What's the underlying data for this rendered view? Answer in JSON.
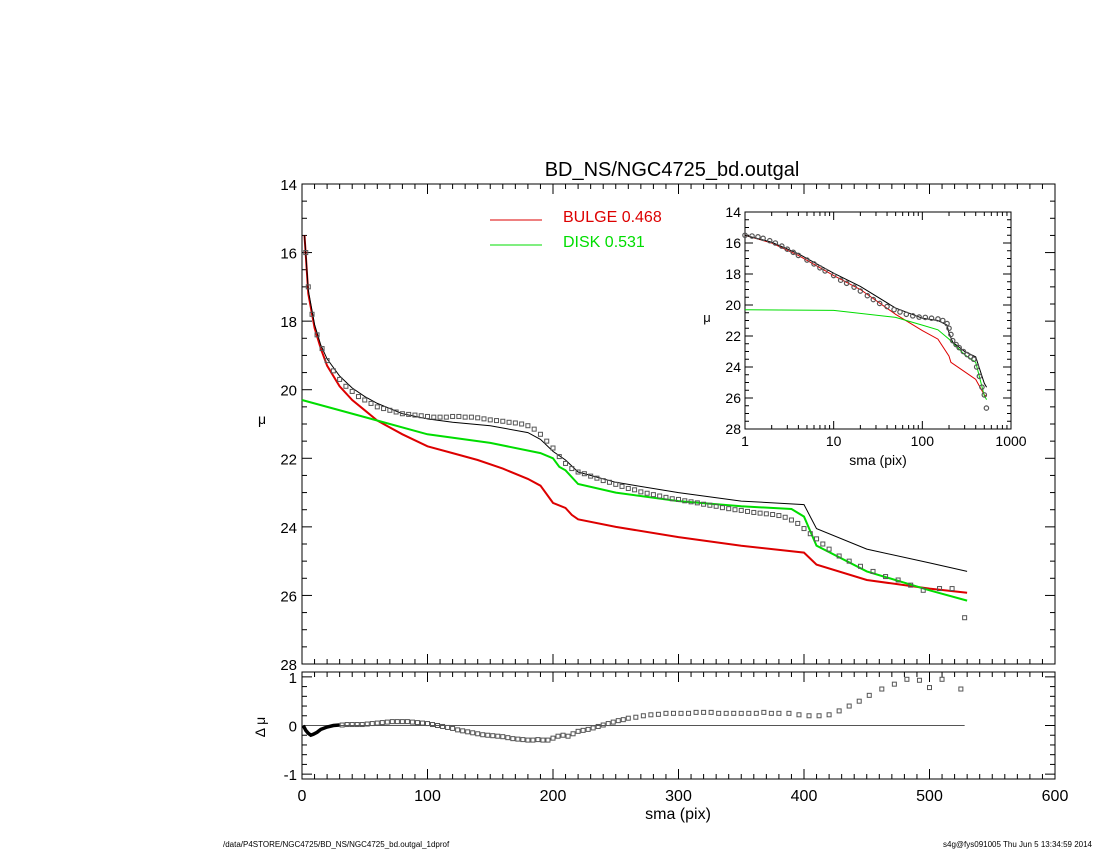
{
  "title": "BD_NS/NGC4725_bd.outgal",
  "footer": {
    "left": "/data/P4STORE/NGC4725/BD_NS/NGC4725_bd.outgal_1dprof",
    "right": "s4g@fys091005  Thu Jun  5 13:34:59 2014"
  },
  "legend": {
    "bulge_label": "BULGE  0.468",
    "disk_label": "DISK  0.531"
  },
  "colors": {
    "bulge": "#dd0000",
    "disk": "#00dd00",
    "total": "#000000",
    "data": "#555555"
  },
  "chart_data": [
    {
      "id": "main",
      "type": "line",
      "xlabel": "",
      "ylabel": "μ",
      "xlim": [
        0,
        600
      ],
      "ylim": [
        28,
        14
      ],
      "y_inverted": true,
      "y_ticks": [
        14,
        16,
        18,
        20,
        22,
        24,
        26,
        28
      ],
      "y_tick_labels": [
        "14",
        "16",
        "18",
        "20",
        "22",
        "24",
        "26",
        "28"
      ],
      "legend_position": "top-center",
      "series": [
        {
          "name": "BULGE  0.468",
          "color_key": "bulge",
          "x": [
            2,
            5,
            10,
            15,
            20,
            30,
            40,
            50,
            60,
            80,
            100,
            120,
            140,
            160,
            180,
            190,
            200,
            210,
            215,
            220,
            250,
            300,
            350,
            400,
            410,
            450,
            500,
            530
          ],
          "y": [
            15.5,
            17.2,
            18.2,
            18.8,
            19.3,
            19.9,
            20.3,
            20.6,
            20.9,
            21.3,
            21.65,
            21.85,
            22.05,
            22.3,
            22.6,
            22.8,
            23.3,
            23.45,
            23.65,
            23.78,
            24.0,
            24.3,
            24.55,
            24.75,
            25.1,
            25.55,
            25.8,
            25.92
          ]
        },
        {
          "name": "DISK  0.531",
          "color_key": "disk",
          "x": [
            0,
            50,
            100,
            150,
            190,
            200,
            205,
            210,
            220,
            250,
            300,
            350,
            390,
            400,
            410,
            450,
            500,
            530
          ],
          "y": [
            20.3,
            20.8,
            21.3,
            21.55,
            21.85,
            22.0,
            22.25,
            22.35,
            22.75,
            23.0,
            23.25,
            23.4,
            23.48,
            23.7,
            24.55,
            25.3,
            25.85,
            26.15
          ]
        },
        {
          "color_key": "total",
          "x": [
            2,
            5,
            10,
            15,
            20,
            30,
            40,
            50,
            60,
            80,
            100,
            120,
            150,
            180,
            190,
            200,
            210,
            220,
            250,
            300,
            350,
            400,
            410,
            450,
            500,
            530
          ],
          "y": [
            15.5,
            17.1,
            18.1,
            18.7,
            19.1,
            19.6,
            19.95,
            20.2,
            20.4,
            20.7,
            20.85,
            20.95,
            21.05,
            21.25,
            21.45,
            21.8,
            22.05,
            22.4,
            22.7,
            23.0,
            23.25,
            23.35,
            24.05,
            24.65,
            25.05,
            25.3
          ]
        }
      ],
      "data_points": {
        "x": [
          3,
          5,
          8,
          12,
          16,
          20,
          25,
          30,
          35,
          40,
          45,
          50,
          55,
          60,
          65,
          70,
          75,
          80,
          85,
          90,
          95,
          100,
          105,
          110,
          115,
          120,
          125,
          130,
          135,
          140,
          145,
          150,
          155,
          160,
          165,
          170,
          175,
          180,
          185,
          190,
          195,
          200,
          205,
          210,
          215,
          220,
          225,
          230,
          235,
          240,
          245,
          250,
          255,
          260,
          265,
          270,
          275,
          280,
          285,
          290,
          295,
          300,
          305,
          310,
          315,
          320,
          325,
          330,
          335,
          340,
          345,
          350,
          355,
          360,
          365,
          370,
          375,
          380,
          385,
          390,
          395,
          400,
          405,
          410,
          415,
          420,
          428,
          436,
          445,
          455,
          465,
          475,
          485,
          495,
          508,
          518,
          528
        ],
        "y": [
          16.0,
          17.0,
          17.8,
          18.4,
          18.8,
          19.15,
          19.45,
          19.7,
          19.9,
          20.05,
          20.2,
          20.3,
          20.4,
          20.5,
          20.55,
          20.6,
          20.65,
          20.7,
          20.72,
          20.74,
          20.76,
          20.78,
          20.8,
          20.8,
          20.8,
          20.78,
          20.78,
          20.8,
          20.8,
          20.82,
          20.85,
          20.88,
          20.9,
          20.92,
          20.95,
          20.97,
          21.0,
          21.05,
          21.15,
          21.3,
          21.5,
          21.7,
          21.95,
          22.15,
          22.3,
          22.4,
          22.45,
          22.52,
          22.58,
          22.65,
          22.7,
          22.76,
          22.82,
          22.88,
          22.92,
          22.98,
          23.02,
          23.06,
          23.1,
          23.14,
          23.18,
          23.2,
          23.24,
          23.27,
          23.3,
          23.34,
          23.37,
          23.4,
          23.44,
          23.47,
          23.5,
          23.52,
          23.55,
          23.58,
          23.6,
          23.62,
          23.64,
          23.67,
          23.72,
          23.8,
          23.9,
          24.05,
          24.2,
          24.35,
          24.5,
          24.65,
          24.85,
          25.0,
          25.15,
          25.3,
          25.45,
          25.55,
          25.7,
          25.85,
          25.8,
          25.8,
          26.65
        ]
      }
    },
    {
      "id": "residual",
      "type": "scatter",
      "xlabel": "sma (pix)",
      "ylabel": "Δ μ",
      "xlim": [
        0,
        600
      ],
      "ylim": [
        -1.1,
        1.1
      ],
      "x_ticks": [
        0,
        100,
        200,
        300,
        400,
        500,
        600
      ],
      "x_tick_labels": [
        "0",
        "100",
        "200",
        "300",
        "400",
        "500",
        "600"
      ],
      "y_ticks": [
        -1,
        0,
        1
      ],
      "y_tick_labels": [
        "-1",
        "0",
        "1"
      ],
      "zero_line_xlim": [
        0,
        528
      ],
      "line": {
        "x": [
          1,
          3,
          5,
          7,
          9,
          12,
          15,
          20,
          25,
          30
        ],
        "y": [
          0.0,
          -0.1,
          -0.16,
          -0.2,
          -0.18,
          -0.14,
          -0.08,
          -0.03,
          0.0,
          0.01
        ]
      },
      "points": {
        "x": [
          32,
          36,
          40,
          44,
          48,
          52,
          56,
          60,
          64,
          68,
          72,
          76,
          80,
          84,
          88,
          92,
          96,
          100,
          104,
          108,
          112,
          116,
          120,
          124,
          128,
          132,
          136,
          140,
          144,
          148,
          152,
          156,
          160,
          164,
          168,
          172,
          176,
          180,
          184,
          188,
          192,
          196,
          200,
          204,
          208,
          212,
          216,
          220,
          224,
          228,
          232,
          236,
          240,
          244,
          248,
          252,
          256,
          260,
          266,
          272,
          278,
          284,
          290,
          296,
          302,
          308,
          314,
          320,
          326,
          332,
          338,
          344,
          350,
          356,
          362,
          368,
          374,
          380,
          388,
          396,
          404,
          412,
          420,
          428,
          436,
          444,
          452,
          462,
          472,
          482,
          492,
          500,
          510,
          525
        ],
        "y": [
          0.01,
          0.02,
          0.02,
          0.02,
          0.02,
          0.03,
          0.04,
          0.05,
          0.06,
          0.07,
          0.08,
          0.08,
          0.08,
          0.08,
          0.07,
          0.06,
          0.05,
          0.04,
          0.02,
          0.0,
          -0.02,
          -0.04,
          -0.06,
          -0.09,
          -0.11,
          -0.13,
          -0.15,
          -0.17,
          -0.19,
          -0.2,
          -0.21,
          -0.22,
          -0.23,
          -0.25,
          -0.27,
          -0.28,
          -0.29,
          -0.3,
          -0.3,
          -0.29,
          -0.3,
          -0.3,
          -0.26,
          -0.22,
          -0.2,
          -0.22,
          -0.17,
          -0.12,
          -0.1,
          -0.08,
          -0.05,
          -0.02,
          0.01,
          0.04,
          0.07,
          0.1,
          0.12,
          0.15,
          0.17,
          0.2,
          0.22,
          0.23,
          0.25,
          0.25,
          0.25,
          0.25,
          0.27,
          0.27,
          0.27,
          0.25,
          0.25,
          0.25,
          0.25,
          0.25,
          0.25,
          0.27,
          0.25,
          0.25,
          0.25,
          0.22,
          0.2,
          0.2,
          0.22,
          0.3,
          0.4,
          0.5,
          0.62,
          0.75,
          0.85,
          0.95,
          0.93,
          0.78,
          0.95,
          0.75
        ]
      }
    },
    {
      "id": "inset",
      "type": "line",
      "xlabel": "sma (pix)",
      "ylabel": "μ",
      "x_scale": "log",
      "xlim": [
        1,
        1000
      ],
      "ylim": [
        28,
        14
      ],
      "y_inverted": true,
      "x_ticks": [
        1,
        10,
        100,
        1000
      ],
      "x_tick_labels": [
        "1",
        "10",
        "100",
        "1000"
      ],
      "y_ticks": [
        14,
        16,
        18,
        20,
        22,
        24,
        26,
        28
      ],
      "y_tick_labels": [
        "14",
        "16",
        "18",
        "20",
        "22",
        "24",
        "26",
        "28"
      ],
      "series": [
        {
          "color_key": "bulge",
          "x": [
            1,
            2,
            4,
            10,
            20,
            50,
            100,
            150,
            200,
            210,
            300,
            400,
            500,
            530
          ],
          "y": [
            15.5,
            16.0,
            16.8,
            18.1,
            19.0,
            20.6,
            21.65,
            22.2,
            23.3,
            23.7,
            24.3,
            24.8,
            25.8,
            25.9
          ]
        },
        {
          "color_key": "disk",
          "x": [
            1,
            10,
            50,
            100,
            150,
            200,
            300,
            400,
            500,
            530
          ],
          "y": [
            20.3,
            20.35,
            20.8,
            21.3,
            21.6,
            22.2,
            23.2,
            23.7,
            25.85,
            26.1
          ]
        },
        {
          "color_key": "total",
          "x": [
            1,
            2,
            4,
            10,
            20,
            50,
            100,
            150,
            190,
            200,
            220,
            300,
            400,
            500,
            530
          ],
          "y": [
            15.5,
            15.95,
            16.7,
            17.95,
            18.8,
            20.2,
            20.85,
            21.0,
            21.3,
            21.8,
            22.4,
            23.0,
            23.35,
            25.05,
            25.3
          ]
        }
      ],
      "data_points": {
        "x": [
          1,
          1.2,
          1.4,
          1.6,
          1.9,
          2.2,
          2.6,
          3,
          3.5,
          4,
          5,
          6,
          7,
          8,
          10,
          12,
          14,
          17,
          20,
          24,
          28,
          33,
          40,
          48,
          56,
          66,
          78,
          92,
          108,
          127,
          150,
          170,
          190,
          200,
          210,
          220,
          240,
          260,
          290,
          320,
          350,
          380,
          410,
          440,
          470,
          500,
          528
        ],
        "y": [
          15.5,
          15.55,
          15.6,
          15.7,
          15.85,
          16.0,
          16.2,
          16.4,
          16.6,
          16.8,
          17.1,
          17.35,
          17.6,
          17.8,
          18.1,
          18.4,
          18.6,
          18.85,
          19.1,
          19.4,
          19.65,
          19.9,
          20.1,
          20.3,
          20.45,
          20.6,
          20.7,
          20.78,
          20.8,
          20.85,
          20.9,
          21.0,
          21.2,
          21.5,
          21.9,
          22.3,
          22.55,
          22.75,
          23.0,
          23.2,
          23.35,
          23.5,
          24.0,
          24.6,
          25.3,
          25.8,
          26.65
        ]
      }
    }
  ]
}
